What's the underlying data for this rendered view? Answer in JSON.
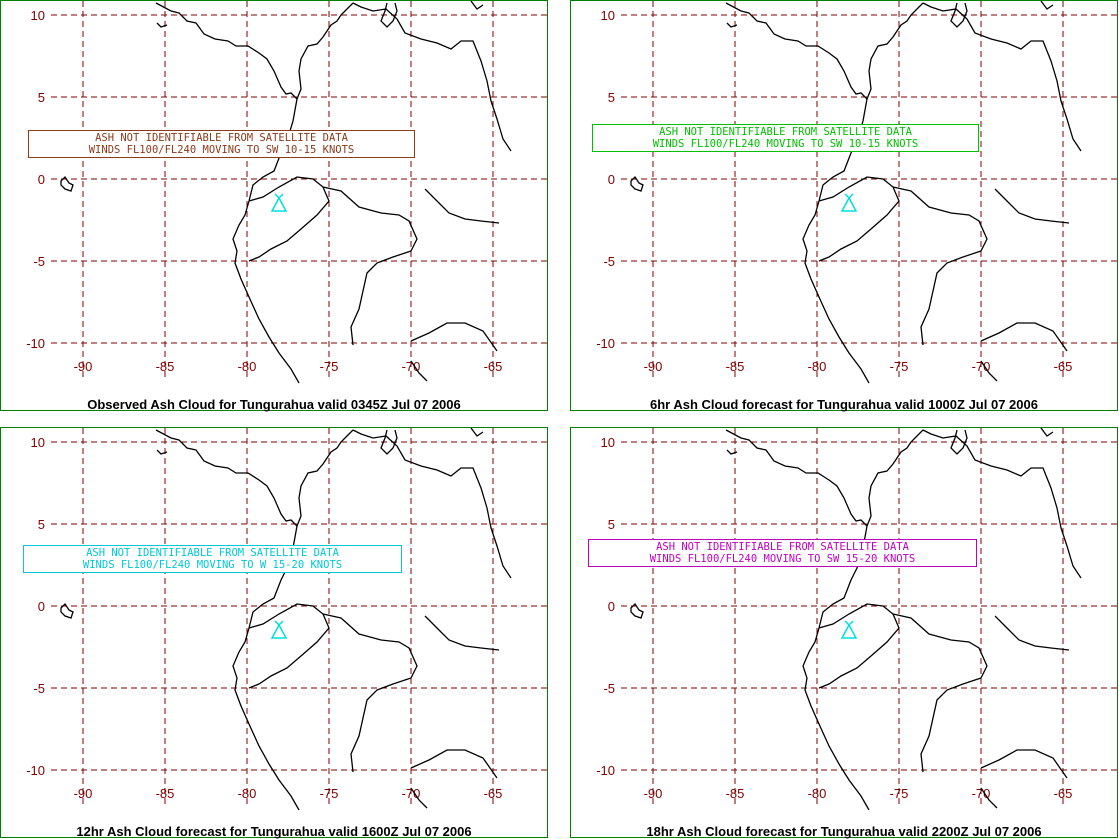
{
  "colors": {
    "border": "#008000",
    "grid": "#800000",
    "coast": "#000000",
    "volcano": "#00e0e0"
  },
  "axes": {
    "lon_ticks": [
      "-90",
      "-85",
      "-80",
      "-75",
      "-70",
      "-65"
    ],
    "lat_ticks": [
      "10",
      "5",
      "0",
      "-5",
      "-10"
    ]
  },
  "volcano_icon": "volcano-triangle-icon",
  "panels": [
    {
      "caption": "Observed Ash Cloud for Tungurahua valid 0345Z Jul 07 2006",
      "message_line1": "ASH NOT IDENTIFIABLE FROM SATELLITE DATA",
      "message_line2": "WINDS FL100/FL240 MOVING TO SW 10-15 KNOTS",
      "message_color": "#8b3a1a"
    },
    {
      "caption": "6hr Ash Cloud forecast for Tungurahua valid 1000Z Jul 07 2006",
      "message_line1": "ASH NOT IDENTIFIABLE FROM SATELLITE DATA",
      "message_line2": "WINDS FL100/FL240 MOVING TO SW 10-15 KNOTS",
      "message_color": "#00c000"
    },
    {
      "caption": "12hr Ash Cloud forecast for Tungurahua valid 1600Z Jul 07 2006",
      "message_line1": "ASH NOT IDENTIFIABLE FROM SATELLITE DATA",
      "message_line2": "WINDS FL100/FL240 MOVING TO W 15-20 KNOTS",
      "message_color": "#00c8d8"
    },
    {
      "caption": "18hr Ash Cloud forecast for Tungurahua valid 2200Z Jul 07 2006",
      "message_line1": "ASH NOT IDENTIFIABLE FROM SATELLITE DATA",
      "message_line2": "WINDS FL100/FL240 MOVING TO SW 15-20 KNOTS",
      "message_color": "#c000c0"
    }
  ]
}
